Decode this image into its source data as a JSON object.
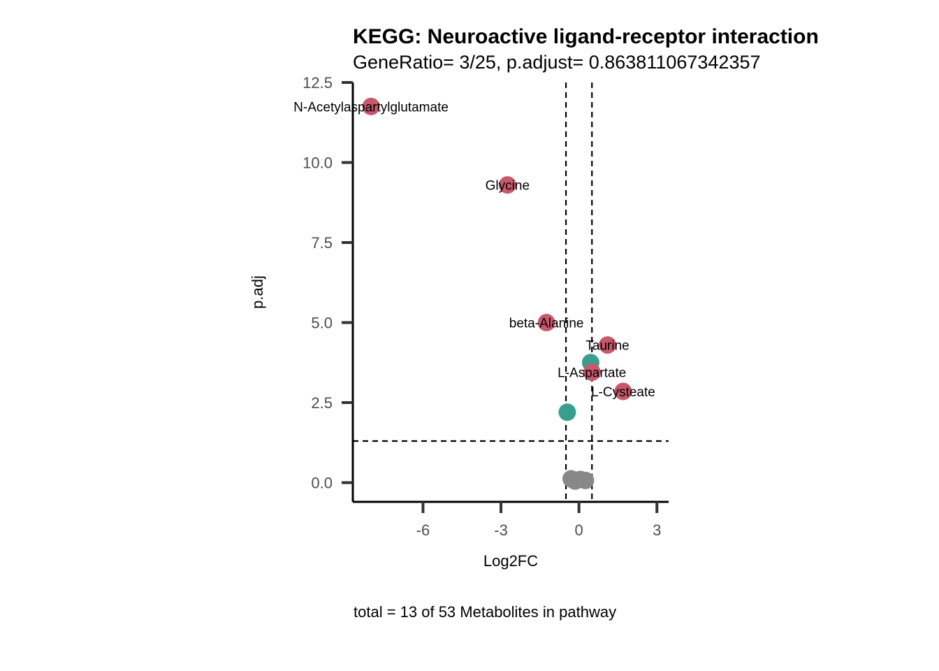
{
  "chart_data": {
    "type": "scatter",
    "title": "KEGG: Neuroactive ligand-receptor interaction",
    "subtitle": "GeneRatio= 3/25, p.adjust= 0.863811067342357",
    "xlabel": "Log2FC",
    "ylabel": "p.adj",
    "caption": "total = 13 of 53 Metabolites in pathway",
    "xlim": [
      -8.7,
      3.45
    ],
    "ylim": [
      -0.6,
      12.5
    ],
    "xticks": [
      -6,
      -3,
      0,
      3
    ],
    "xtick_labels": [
      "-6",
      "-3",
      "0",
      "3"
    ],
    "yticks": [
      0,
      2.5,
      5,
      7.5,
      10,
      12.5
    ],
    "ytick_labels": [
      "0.0",
      "2.5",
      "5.0",
      "7.5",
      "10.0",
      "12.5"
    ],
    "thresholds": {
      "fc": [
        -0.5,
        0.5
      ],
      "p": 1.3
    },
    "colors": {
      "up_sig": "#c8586c",
      "sig_teal": "#3a9e8f",
      "nonsig": "#888888"
    },
    "points": [
      {
        "x": -8.0,
        "y": 11.75,
        "group": "up_sig",
        "label": "N-Acetylaspartylglutamate"
      },
      {
        "x": -2.75,
        "y": 9.3,
        "group": "up_sig",
        "label": "Glycine"
      },
      {
        "x": -1.25,
        "y": 5.0,
        "group": "up_sig",
        "label": "beta-Alanine"
      },
      {
        "x": 1.1,
        "y": 4.3,
        "group": "up_sig",
        "label": "Taurine"
      },
      {
        "x": 0.5,
        "y": 3.45,
        "group": "up_sig",
        "label": "L-Aspartate"
      },
      {
        "x": 1.7,
        "y": 2.85,
        "group": "up_sig",
        "label": "L-Cysteate"
      },
      {
        "x": 0.45,
        "y": 3.75,
        "group": "sig_teal",
        "label": ""
      },
      {
        "x": -0.45,
        "y": 2.2,
        "group": "sig_teal",
        "label": ""
      },
      {
        "x": -0.3,
        "y": 0.12,
        "group": "nonsig",
        "label": ""
      },
      {
        "x": -0.2,
        "y": 0.08,
        "group": "nonsig",
        "label": ""
      },
      {
        "x": -0.15,
        "y": 0.05,
        "group": "nonsig",
        "label": ""
      },
      {
        "x": 0.05,
        "y": 0.1,
        "group": "nonsig",
        "label": ""
      },
      {
        "x": 0.25,
        "y": 0.07,
        "group": "nonsig",
        "label": ""
      }
    ]
  }
}
